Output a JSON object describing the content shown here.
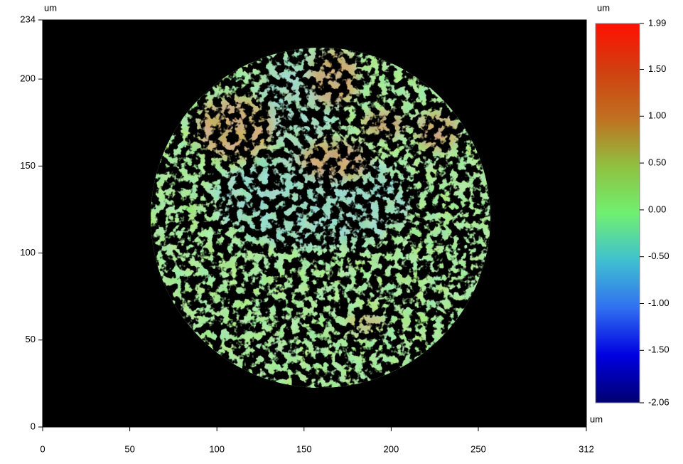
{
  "chart_data": {
    "type": "heatmap",
    "x_label": "um",
    "y_label": "um",
    "colorbar_label": "um",
    "xlim": [
      0,
      312
    ],
    "ylim": [
      0,
      234
    ],
    "xticks": [
      0,
      50,
      100,
      150,
      200,
      250,
      312
    ],
    "yticks": [
      0,
      50,
      100,
      150,
      200,
      234
    ],
    "clim": [
      -2.06,
      1.99
    ],
    "cticks": [
      1.99,
      {
        "value": 1.5,
        "label": "1.50"
      },
      {
        "value": 1,
        "label": "1.00"
      },
      {
        "value": 0.5,
        "label": "0.50"
      },
      {
        "value": 0,
        "label": "0.00"
      },
      {
        "value": -0.5,
        "label": "-0.50"
      },
      {
        "value": -1,
        "label": "-1.00"
      },
      {
        "value": -1.5,
        "label": "-1.50"
      },
      -2.06
    ],
    "colormap": [
      "#000070",
      "#0000e0",
      "#3070f0",
      "#40c0d0",
      "#70f070",
      "#90c040",
      "#c07020",
      "#d04010",
      "#ff1000"
    ],
    "background": "#000000"
  }
}
